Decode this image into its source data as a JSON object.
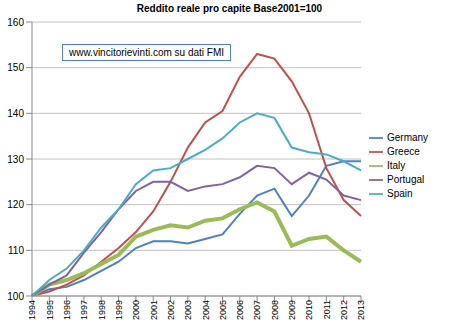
{
  "chart_data": {
    "type": "line",
    "title": "Reddito reale pro capite Base2001=100",
    "annotations": [
      "www.vincitorievinti.com su dati FMI"
    ],
    "categories": [
      "1994",
      "1995",
      "1996",
      "1997",
      "1998",
      "1999",
      "2000",
      "2001",
      "2002",
      "2003",
      "2004",
      "2005",
      "2006",
      "2007",
      "2008",
      "2009",
      "2010",
      "2011",
      "2012",
      "2013"
    ],
    "series": [
      {
        "name": "Germany",
        "color": "#4F81BD",
        "values": [
          100,
          101.5,
          102,
          103.5,
          105.5,
          107.5,
          110.5,
          112,
          112,
          111.5,
          112.5,
          113.5,
          118,
          122,
          123.5,
          117.5,
          122,
          128.5,
          129.5,
          129.5
        ]
      },
      {
        "name": "Greece",
        "color": "#C0504D",
        "values": [
          100,
          101,
          102.5,
          104.5,
          107.5,
          110.5,
          114,
          118.5,
          125,
          132.5,
          138,
          140.5,
          148,
          153,
          152,
          147,
          140,
          128,
          121,
          117.5
        ]
      },
      {
        "name": "Italy",
        "color": "#9BBB59",
        "values": [
          100,
          102.5,
          103.5,
          105,
          107,
          109,
          113,
          114.5,
          115.5,
          115,
          116.5,
          117,
          119,
          120.5,
          118.5,
          111,
          112.5,
          113,
          110,
          107.5
        ]
      },
      {
        "name": "Portugal",
        "color": "#8064A2",
        "values": [
          100,
          102.5,
          104.5,
          109.5,
          114,
          119,
          123,
          125,
          125,
          123,
          124,
          124.5,
          126,
          128.5,
          128,
          124.5,
          127,
          125.5,
          122,
          121
        ]
      },
      {
        "name": "Spain",
        "color": "#4BACC6",
        "values": [
          100,
          103.5,
          106,
          110,
          115,
          119,
          124.5,
          127.5,
          128,
          130,
          132,
          134.5,
          138,
          140,
          139,
          132.5,
          131.5,
          131,
          129.5,
          127.5
        ]
      }
    ],
    "ylim": [
      100,
      160
    ],
    "yticks": [
      100,
      110,
      120,
      130,
      140,
      150,
      160
    ],
    "grid": true,
    "legend": "right"
  }
}
